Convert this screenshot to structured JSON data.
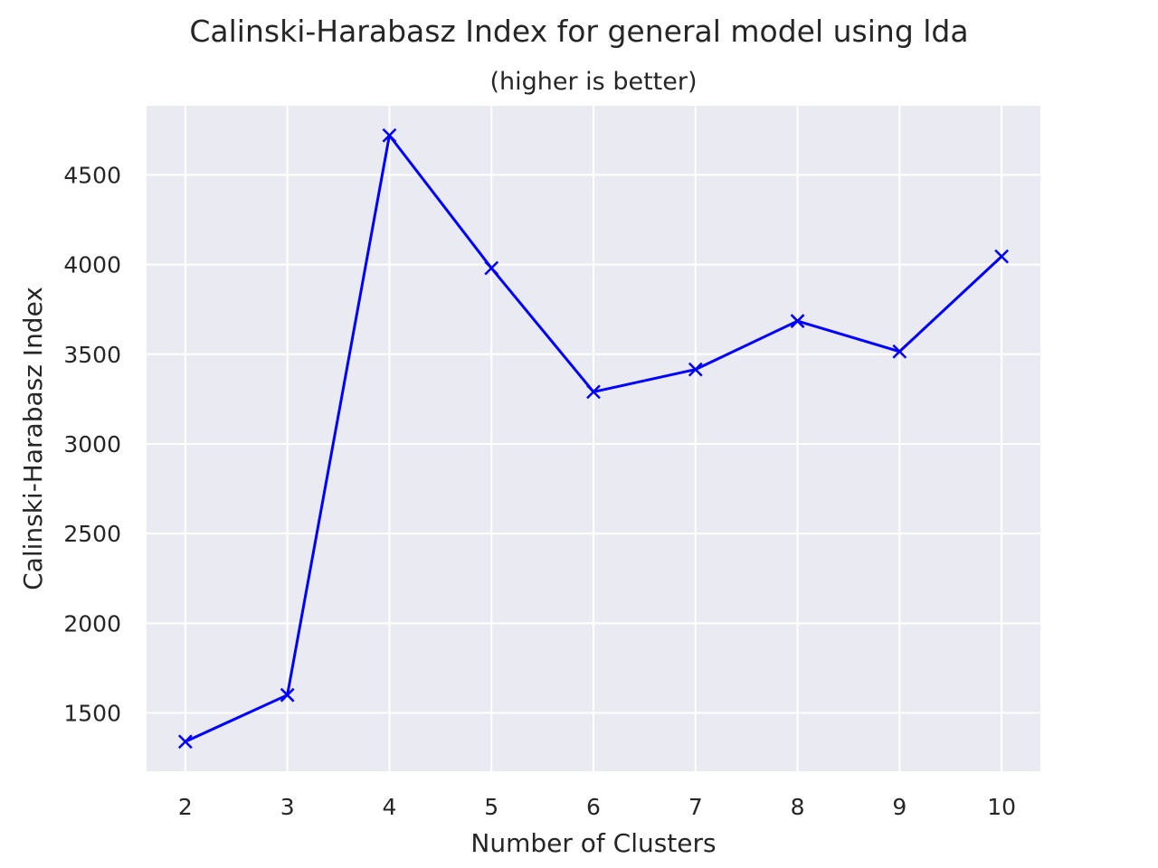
{
  "chart_data": {
    "type": "line",
    "title": "Calinski-Harabasz Index for general model using lda",
    "subtitle": "(higher is better)",
    "xlabel": "Number of Clusters",
    "ylabel": "Calinski-Harabasz Index",
    "x": [
      2,
      3,
      4,
      5,
      6,
      7,
      8,
      9,
      10
    ],
    "series": [
      {
        "values": [
          1340,
          1600,
          4720,
          3980,
          3290,
          3415,
          3685,
          3515,
          4045
        ]
      }
    ],
    "xticks": [
      "2",
      "3",
      "4",
      "5",
      "6",
      "7",
      "8",
      "9",
      "10"
    ],
    "yticks": [
      "1500",
      "2000",
      "2500",
      "3000",
      "3500",
      "4000",
      "4500"
    ],
    "xlim": [
      1.62,
      10.38
    ],
    "ylim": [
      1175,
      4885
    ],
    "marker": "x",
    "grid": true,
    "colors": {
      "line": "#0000ff",
      "plot_bg": "#eaeaf2",
      "grid": "#ffffff",
      "text": "#262626"
    }
  }
}
